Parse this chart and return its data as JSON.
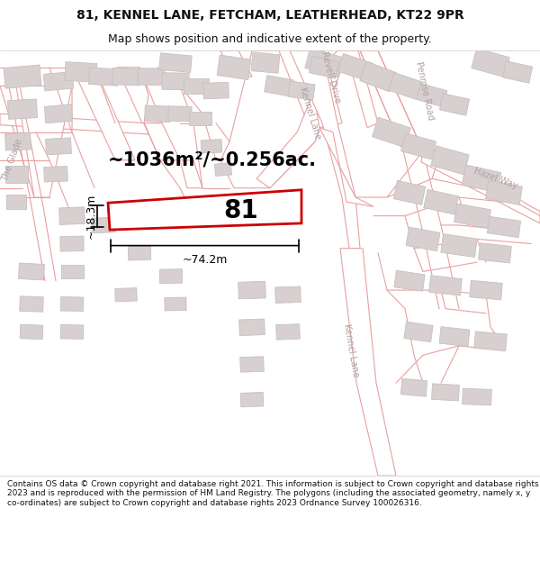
{
  "title_line1": "81, KENNEL LANE, FETCHAM, LEATHERHEAD, KT22 9PR",
  "title_line2": "Map shows position and indicative extent of the property.",
  "area_label": "~1036m²/~0.256ac.",
  "property_number": "81",
  "width_label": "~74.2m",
  "height_label": "~18.3m",
  "footer_text": "Contains OS data © Crown copyright and database right 2021. This information is subject to Crown copyright and database rights 2023 and is reproduced with the permission of HM Land Registry. The polygons (including the associated geometry, namely x, y co-ordinates) are subject to Crown copyright and database rights 2023 Ordnance Survey 100026316.",
  "road_line_color": "#e8a0a0",
  "road_fill_color": "#ffffff",
  "bldg_fill": "#d8d0d0",
  "bldg_ec": "#c8c0c0",
  "property_stroke": "#cc0000",
  "property_lw": 2.0,
  "map_bg": "#ffffff",
  "text_color": "#111111",
  "road_label_color": "#b0a0a0",
  "dim_color": "#000000",
  "title_fontsize": 10,
  "subtitle_fontsize": 9,
  "area_fontsize": 15,
  "prop_num_fontsize": 20,
  "dim_fontsize": 9,
  "road_label_fontsize": 7,
  "footer_fontsize": 6.5
}
